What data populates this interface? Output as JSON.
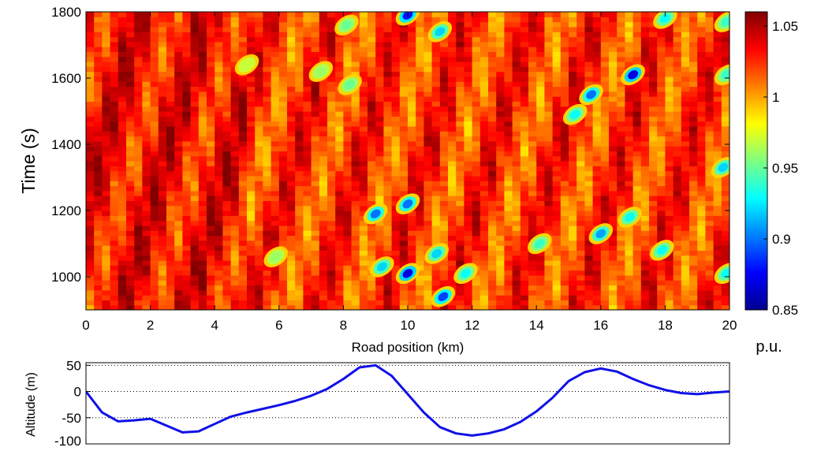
{
  "chart_data": [
    {
      "type": "heatmap",
      "xlabel": "Road position (km)",
      "ylabel": "Time (s)",
      "xlim": [
        0,
        20
      ],
      "ylim": [
        900,
        1800
      ],
      "x_ticks": [
        0,
        2,
        4,
        6,
        8,
        10,
        12,
        14,
        16,
        18,
        20
      ],
      "y_ticks": [
        1000,
        1200,
        1400,
        1600,
        1800
      ],
      "colorbar": {
        "label": "p.u.",
        "range": [
          0.85,
          1.06
        ],
        "ticks": [
          1.05,
          1,
          0.95,
          0.9,
          0.85
        ],
        "colormap": "jet"
      },
      "low_value_zones": [
        {
          "x_km": 10.0,
          "time_s": 1790,
          "value": 0.88
        },
        {
          "x_km": 10.0,
          "time_s": 1010,
          "value": 0.87
        },
        {
          "x_km": 10.0,
          "time_s": 1220,
          "value": 0.9
        },
        {
          "x_km": 11.1,
          "time_s": 940,
          "value": 0.89
        },
        {
          "x_km": 9.0,
          "time_s": 1190,
          "value": 0.9
        },
        {
          "x_km": 9.2,
          "time_s": 1030,
          "value": 0.92
        },
        {
          "x_km": 10.9,
          "time_s": 1070,
          "value": 0.92
        },
        {
          "x_km": 11.0,
          "time_s": 1740,
          "value": 0.92
        },
        {
          "x_km": 11.8,
          "time_s": 1010,
          "value": 0.93
        },
        {
          "x_km": 15.7,
          "time_s": 1550,
          "value": 0.9
        },
        {
          "x_km": 16.0,
          "time_s": 1130,
          "value": 0.91
        },
        {
          "x_km": 17.0,
          "time_s": 1610,
          "value": 0.87
        },
        {
          "x_km": 15.2,
          "time_s": 1490,
          "value": 0.93
        },
        {
          "x_km": 16.9,
          "time_s": 1180,
          "value": 0.93
        },
        {
          "x_km": 18.0,
          "time_s": 1780,
          "value": 0.93
        },
        {
          "x_km": 17.9,
          "time_s": 1080,
          "value": 0.93
        },
        {
          "x_km": 19.8,
          "time_s": 1330,
          "value": 0.92
        },
        {
          "x_km": 19.9,
          "time_s": 1010,
          "value": 0.93
        },
        {
          "x_km": 19.9,
          "time_s": 1610,
          "value": 0.94
        },
        {
          "x_km": 19.9,
          "time_s": 1770,
          "value": 0.94
        },
        {
          "x_km": 14.1,
          "time_s": 1100,
          "value": 0.94
        },
        {
          "x_km": 8.1,
          "time_s": 1760,
          "value": 0.95
        },
        {
          "x_km": 7.3,
          "time_s": 1620,
          "value": 0.96
        },
        {
          "x_km": 5.0,
          "time_s": 1640,
          "value": 0.97
        },
        {
          "x_km": 5.9,
          "time_s": 1060,
          "value": 0.96
        },
        {
          "x_km": 8.2,
          "time_s": 1580,
          "value": 0.95
        }
      ]
    },
    {
      "type": "line",
      "ylabel": "Altitude (m)",
      "xlim": [
        0,
        20
      ],
      "ylim": [
        -100,
        55
      ],
      "y_ticks": [
        50,
        0,
        -50,
        -100
      ],
      "grid": "horizontal-dotted",
      "series": [
        {
          "x": [
            0,
            0.5,
            1.0,
            1.5,
            2.0,
            2.5,
            3.0,
            3.5,
            4.0,
            4.5,
            5.0,
            5.5,
            6.0,
            6.5,
            7.0,
            7.5,
            8.0,
            8.5,
            9.0,
            9.5,
            10.0,
            10.5,
            11.0,
            11.5,
            12.0,
            12.5,
            13.0,
            13.5,
            14.0,
            14.5,
            15.0,
            15.5,
            16.0,
            16.5,
            17.0,
            17.5,
            18.0,
            18.5,
            19.0,
            19.5,
            20.0
          ],
          "y": [
            0,
            -40,
            -57,
            -55,
            -52,
            -65,
            -78,
            -76,
            -62,
            -48,
            -40,
            -33,
            -26,
            -18,
            -8,
            5,
            24,
            46,
            50,
            30,
            -5,
            -40,
            -68,
            -80,
            -84,
            -80,
            -72,
            -58,
            -38,
            -12,
            20,
            37,
            44,
            38,
            24,
            12,
            3,
            -3,
            -5,
            -2,
            0
          ]
        }
      ]
    }
  ]
}
